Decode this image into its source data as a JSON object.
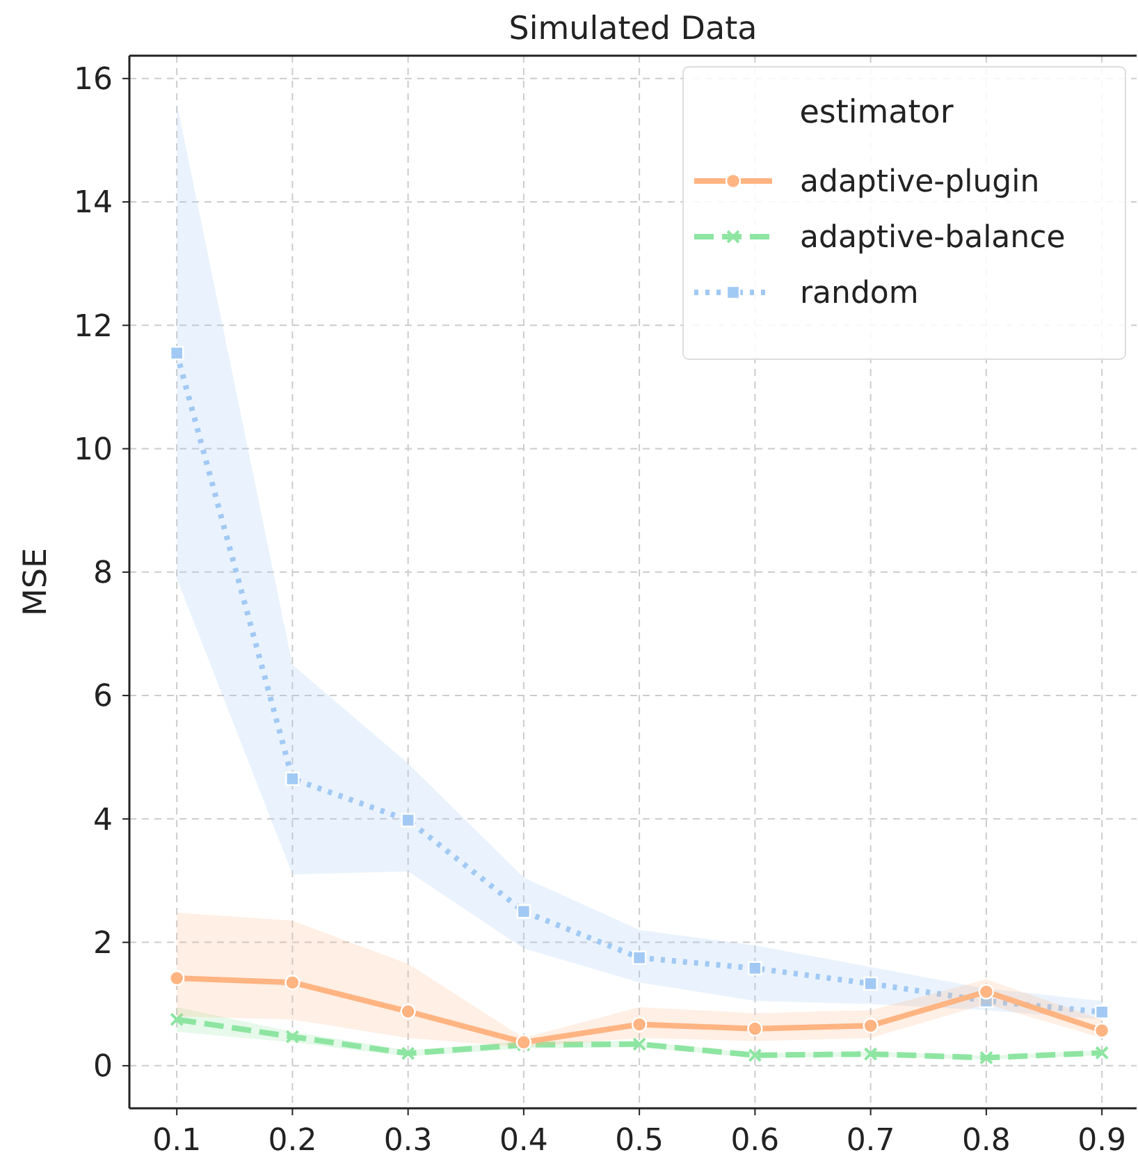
{
  "chart_data": {
    "type": "line",
    "title": "Simulated Data",
    "ylabel": "MSE",
    "legend_title": "estimator",
    "legend": "top right",
    "grid": true,
    "x": [
      0.1,
      0.2,
      0.3,
      0.4,
      0.5,
      0.6,
      0.7,
      0.8,
      0.9
    ],
    "xlim": [
      0.059,
      0.93
    ],
    "xticks": [
      0.1,
      0.2,
      0.3,
      0.4,
      0.5,
      0.6,
      0.7,
      0.8,
      0.9
    ],
    "ylim": [
      -0.69,
      16.37
    ],
    "yticks": [
      0,
      2,
      4,
      6,
      8,
      10,
      12,
      14,
      16
    ],
    "series": [
      {
        "name": "adaptive-plugin",
        "color": "#ffb482",
        "marker": "circle",
        "line_style": "solid",
        "values": [
          1.42,
          1.35,
          0.88,
          0.38,
          0.67,
          0.6,
          0.65,
          1.2,
          0.57
        ],
        "lower": [
          0.8,
          0.75,
          0.45,
          0.3,
          0.45,
          0.4,
          0.45,
          1.0,
          0.45
        ],
        "upper": [
          2.48,
          2.35,
          1.65,
          0.45,
          0.95,
          0.85,
          0.9,
          1.4,
          0.75
        ]
      },
      {
        "name": "adaptive-balance",
        "color": "#8de5a1",
        "marker": "cross",
        "line_style": "dashed",
        "values": [
          0.75,
          0.47,
          0.2,
          0.34,
          0.35,
          0.17,
          0.19,
          0.13,
          0.21
        ],
        "lower": [
          0.55,
          0.38,
          0.15,
          0.28,
          0.3,
          0.13,
          0.15,
          0.1,
          0.17
        ],
        "upper": [
          0.95,
          0.55,
          0.25,
          0.4,
          0.4,
          0.2,
          0.23,
          0.16,
          0.25
        ]
      },
      {
        "name": "random",
        "color": "#a1c9f4",
        "marker": "square",
        "line_style": "dotted",
        "values": [
          11.55,
          4.65,
          3.98,
          2.5,
          1.75,
          1.58,
          1.33,
          1.05,
          0.87
        ],
        "lower": [
          7.9,
          3.1,
          3.15,
          1.9,
          1.35,
          1.05,
          1.0,
          0.9,
          0.75
        ],
        "upper": [
          15.6,
          6.5,
          4.9,
          3.05,
          2.2,
          1.95,
          1.6,
          1.25,
          1.05
        ]
      }
    ]
  }
}
